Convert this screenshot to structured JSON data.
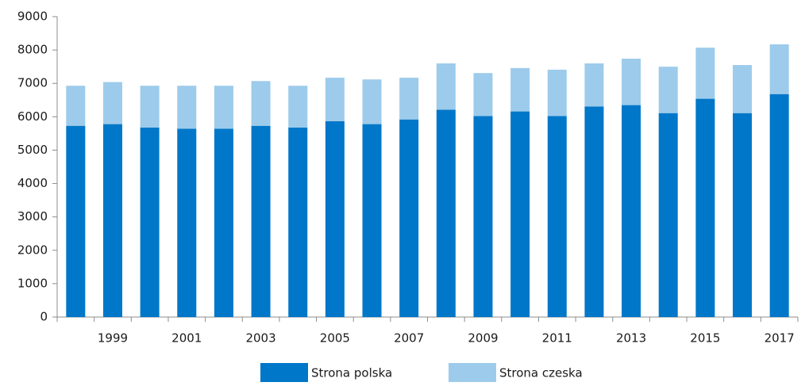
{
  "chart_data": {
    "type": "stacked_bar",
    "categories": [
      null,
      "1999",
      null,
      "2001",
      null,
      "2003",
      null,
      "2005",
      null,
      "2007",
      null,
      "2009",
      null,
      "2011",
      null,
      "2013",
      null,
      "2015",
      null,
      "2017"
    ],
    "series": [
      {
        "name": "Strona polska",
        "color": "#0077c8",
        "values": [
          5730,
          5780,
          5680,
          5640,
          5640,
          5730,
          5680,
          5870,
          5780,
          5920,
          6210,
          6020,
          6160,
          6020,
          6310,
          6350,
          6110,
          6540,
          6110,
          6680
        ]
      },
      {
        "name": "Strona czeska",
        "color": "#9dcbeb",
        "values": [
          1200,
          1260,
          1250,
          1290,
          1290,
          1340,
          1250,
          1300,
          1340,
          1250,
          1390,
          1290,
          1300,
          1390,
          1290,
          1390,
          1390,
          1530,
          1440,
          1490
        ]
      }
    ],
    "ylim": [
      0,
      9000
    ],
    "yticks": [
      0,
      1000,
      2000,
      3000,
      4000,
      5000,
      6000,
      7000,
      8000,
      9000
    ],
    "grid": false,
    "legend": "bottom"
  }
}
